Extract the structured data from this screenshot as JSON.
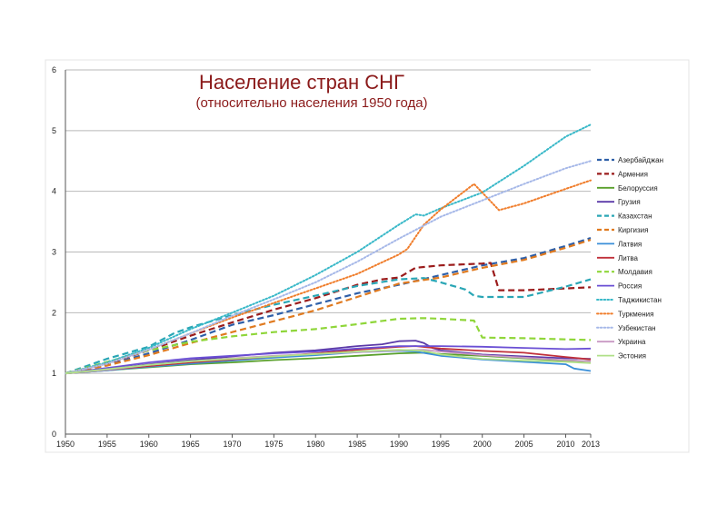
{
  "chart_data": {
    "type": "line",
    "title": "Население стран СНГ",
    "subtitle": "(относительно населения 1950 года)",
    "xlabel": "",
    "ylabel": "",
    "xlim": [
      1950,
      2013
    ],
    "ylim": [
      0,
      6
    ],
    "grid": true,
    "legend_position": "right",
    "x_ticks": [
      1950,
      1955,
      1960,
      1965,
      1970,
      1975,
      1980,
      1985,
      1990,
      1995,
      2000,
      2005,
      2010,
      2013
    ],
    "y_ticks": [
      0,
      1,
      2,
      3,
      4,
      5,
      6
    ],
    "series": [
      {
        "name": "Азербайджан",
        "color": "#2e5fa8",
        "dash": "dashed",
        "points": [
          [
            1950,
            1
          ],
          [
            1955,
            1.14
          ],
          [
            1960,
            1.33
          ],
          [
            1965,
            1.55
          ],
          [
            1970,
            1.8
          ],
          [
            1975,
            1.96
          ],
          [
            1980,
            2.14
          ],
          [
            1985,
            2.32
          ],
          [
            1990,
            2.46
          ],
          [
            1995,
            2.62
          ],
          [
            2000,
            2.78
          ],
          [
            2005,
            2.9
          ],
          [
            2010,
            3.1
          ],
          [
            2013,
            3.23
          ]
        ]
      },
      {
        "name": "Армения",
        "color": "#9b1c1c",
        "dash": "dashed",
        "points": [
          [
            1950,
            1
          ],
          [
            1955,
            1.16
          ],
          [
            1960,
            1.38
          ],
          [
            1965,
            1.62
          ],
          [
            1970,
            1.84
          ],
          [
            1975,
            2.05
          ],
          [
            1980,
            2.24
          ],
          [
            1985,
            2.46
          ],
          [
            1988,
            2.55
          ],
          [
            1990,
            2.58
          ],
          [
            1992,
            2.74
          ],
          [
            1995,
            2.78
          ],
          [
            2000,
            2.81
          ],
          [
            2001,
            2.82
          ],
          [
            2002,
            2.37
          ],
          [
            2005,
            2.37
          ],
          [
            2010,
            2.4
          ],
          [
            2013,
            2.42
          ]
        ]
      },
      {
        "name": "Белоруссия",
        "color": "#5aa02c",
        "dash": "solid",
        "points": [
          [
            1950,
            1
          ],
          [
            1955,
            1.05
          ],
          [
            1960,
            1.1
          ],
          [
            1965,
            1.15
          ],
          [
            1970,
            1.18
          ],
          [
            1975,
            1.22
          ],
          [
            1980,
            1.25
          ],
          [
            1985,
            1.29
          ],
          [
            1990,
            1.33
          ],
          [
            1993,
            1.34
          ],
          [
            1995,
            1.32
          ],
          [
            2000,
            1.29
          ],
          [
            2005,
            1.25
          ],
          [
            2010,
            1.21
          ],
          [
            2013,
            1.2
          ]
        ]
      },
      {
        "name": "Грузия",
        "color": "#5b3aa8",
        "dash": "solid",
        "points": [
          [
            1950,
            1
          ],
          [
            1955,
            1.07
          ],
          [
            1960,
            1.15
          ],
          [
            1965,
            1.22
          ],
          [
            1970,
            1.28
          ],
          [
            1975,
            1.34
          ],
          [
            1980,
            1.38
          ],
          [
            1985,
            1.45
          ],
          [
            1988,
            1.48
          ],
          [
            1990,
            1.53
          ],
          [
            1992,
            1.54
          ],
          [
            1993,
            1.5
          ],
          [
            1994,
            1.42
          ],
          [
            1995,
            1.38
          ],
          [
            2000,
            1.31
          ],
          [
            2005,
            1.28
          ],
          [
            2010,
            1.25
          ],
          [
            2013,
            1.24
          ]
        ]
      },
      {
        "name": "Казахстан",
        "color": "#2aa6b5",
        "dash": "dashed",
        "points": [
          [
            1950,
            1
          ],
          [
            1955,
            1.24
          ],
          [
            1960,
            1.44
          ],
          [
            1963,
            1.66
          ],
          [
            1965,
            1.76
          ],
          [
            1970,
            1.96
          ],
          [
            1975,
            2.13
          ],
          [
            1980,
            2.28
          ],
          [
            1985,
            2.44
          ],
          [
            1990,
            2.55
          ],
          [
            1993,
            2.57
          ],
          [
            1995,
            2.5
          ],
          [
            1998,
            2.38
          ],
          [
            1999,
            2.28
          ],
          [
            2000,
            2.26
          ],
          [
            2005,
            2.26
          ],
          [
            2010,
            2.43
          ],
          [
            2013,
            2.55
          ]
        ]
      },
      {
        "name": "Киргизия",
        "color": "#e07a1f",
        "dash": "dashed",
        "points": [
          [
            1950,
            1
          ],
          [
            1955,
            1.13
          ],
          [
            1960,
            1.3
          ],
          [
            1965,
            1.5
          ],
          [
            1970,
            1.68
          ],
          [
            1975,
            1.86
          ],
          [
            1980,
            2.04
          ],
          [
            1985,
            2.26
          ],
          [
            1990,
            2.48
          ],
          [
            1995,
            2.58
          ],
          [
            2000,
            2.74
          ],
          [
            2005,
            2.87
          ],
          [
            2010,
            3.07
          ],
          [
            2013,
            3.2
          ]
        ]
      },
      {
        "name": "Латвия",
        "color": "#3a8fd8",
        "dash": "solid",
        "points": [
          [
            1950,
            1
          ],
          [
            1955,
            1.05
          ],
          [
            1960,
            1.11
          ],
          [
            1965,
            1.16
          ],
          [
            1970,
            1.21
          ],
          [
            1975,
            1.26
          ],
          [
            1980,
            1.3
          ],
          [
            1985,
            1.35
          ],
          [
            1990,
            1.37
          ],
          [
            1992,
            1.36
          ],
          [
            1995,
            1.29
          ],
          [
            2000,
            1.23
          ],
          [
            2005,
            1.19
          ],
          [
            2010,
            1.15
          ],
          [
            2011,
            1.08
          ],
          [
            2013,
            1.04
          ]
        ]
      },
      {
        "name": "Литва",
        "color": "#c0303a",
        "dash": "solid",
        "points": [
          [
            1950,
            1
          ],
          [
            1955,
            1.06
          ],
          [
            1960,
            1.12
          ],
          [
            1965,
            1.18
          ],
          [
            1970,
            1.23
          ],
          [
            1975,
            1.28
          ],
          [
            1980,
            1.33
          ],
          [
            1985,
            1.39
          ],
          [
            1990,
            1.44
          ],
          [
            1992,
            1.45
          ],
          [
            1995,
            1.41
          ],
          [
            2000,
            1.37
          ],
          [
            2005,
            1.34
          ],
          [
            2010,
            1.27
          ],
          [
            2013,
            1.23
          ]
        ]
      },
      {
        "name": "Молдавия",
        "color": "#8fd63a",
        "dash": "dashed",
        "points": [
          [
            1950,
            1
          ],
          [
            1955,
            1.19
          ],
          [
            1960,
            1.38
          ],
          [
            1965,
            1.52
          ],
          [
            1970,
            1.61
          ],
          [
            1975,
            1.68
          ],
          [
            1980,
            1.73
          ],
          [
            1985,
            1.81
          ],
          [
            1990,
            1.9
          ],
          [
            1993,
            1.91
          ],
          [
            1995,
            1.9
          ],
          [
            1999,
            1.87
          ],
          [
            2000,
            1.59
          ],
          [
            2005,
            1.58
          ],
          [
            2010,
            1.56
          ],
          [
            2013,
            1.55
          ]
        ]
      },
      {
        "name": "Россия",
        "color": "#6a4fd4",
        "dash": "solid",
        "points": [
          [
            1950,
            1
          ],
          [
            1955,
            1.09
          ],
          [
            1960,
            1.18
          ],
          [
            1965,
            1.25
          ],
          [
            1970,
            1.29
          ],
          [
            1975,
            1.33
          ],
          [
            1980,
            1.36
          ],
          [
            1985,
            1.41
          ],
          [
            1990,
            1.45
          ],
          [
            1995,
            1.45
          ],
          [
            2000,
            1.44
          ],
          [
            2005,
            1.42
          ],
          [
            2010,
            1.4
          ],
          [
            2013,
            1.41
          ]
        ]
      },
      {
        "name": "Таджикистан",
        "color": "#38b8c8",
        "dash": "dotted",
        "points": [
          [
            1950,
            1
          ],
          [
            1955,
            1.18
          ],
          [
            1960,
            1.42
          ],
          [
            1965,
            1.73
          ],
          [
            1970,
            2.0
          ],
          [
            1975,
            2.28
          ],
          [
            1980,
            2.62
          ],
          [
            1985,
            3.0
          ],
          [
            1990,
            3.45
          ],
          [
            1992,
            3.62
          ],
          [
            1993,
            3.6
          ],
          [
            1995,
            3.72
          ],
          [
            2000,
            3.98
          ],
          [
            2005,
            4.42
          ],
          [
            2010,
            4.9
          ],
          [
            2013,
            5.1
          ]
        ]
      },
      {
        "name": "Туркмения",
        "color": "#f07d2b",
        "dash": "dotted",
        "points": [
          [
            1950,
            1
          ],
          [
            1955,
            1.16
          ],
          [
            1960,
            1.39
          ],
          [
            1965,
            1.66
          ],
          [
            1970,
            1.92
          ],
          [
            1975,
            2.16
          ],
          [
            1980,
            2.4
          ],
          [
            1985,
            2.64
          ],
          [
            1990,
            2.96
          ],
          [
            1991,
            3.05
          ],
          [
            1993,
            3.45
          ],
          [
            1995,
            3.7
          ],
          [
            1999,
            4.12
          ],
          [
            2000,
            3.98
          ],
          [
            2002,
            3.69
          ],
          [
            2005,
            3.8
          ],
          [
            2010,
            4.04
          ],
          [
            2013,
            4.18
          ]
        ]
      },
      {
        "name": "Узбекистан",
        "color": "#a6b8e8",
        "dash": "dotted",
        "points": [
          [
            1950,
            1
          ],
          [
            1955,
            1.16
          ],
          [
            1960,
            1.39
          ],
          [
            1965,
            1.66
          ],
          [
            1970,
            1.95
          ],
          [
            1975,
            2.22
          ],
          [
            1980,
            2.5
          ],
          [
            1985,
            2.84
          ],
          [
            1990,
            3.22
          ],
          [
            1995,
            3.58
          ],
          [
            2000,
            3.85
          ],
          [
            2005,
            4.12
          ],
          [
            2010,
            4.38
          ],
          [
            2013,
            4.5
          ]
        ]
      },
      {
        "name": "Украина",
        "color": "#c898c4",
        "dash": "solid",
        "points": [
          [
            1950,
            1
          ],
          [
            1955,
            1.06
          ],
          [
            1960,
            1.14
          ],
          [
            1965,
            1.2
          ],
          [
            1970,
            1.25
          ],
          [
            1975,
            1.29
          ],
          [
            1980,
            1.32
          ],
          [
            1985,
            1.35
          ],
          [
            1990,
            1.38
          ],
          [
            1993,
            1.39
          ],
          [
            1995,
            1.36
          ],
          [
            2000,
            1.3
          ],
          [
            2005,
            1.26
          ],
          [
            2010,
            1.22
          ],
          [
            2013,
            1.2
          ]
        ]
      },
      {
        "name": "Эстония",
        "color": "#b0e088",
        "dash": "solid",
        "points": [
          [
            1950,
            1
          ],
          [
            1955,
            1.07
          ],
          [
            1960,
            1.14
          ],
          [
            1965,
            1.2
          ],
          [
            1970,
            1.24
          ],
          [
            1975,
            1.28
          ],
          [
            1980,
            1.32
          ],
          [
            1985,
            1.36
          ],
          [
            1990,
            1.39
          ],
          [
            1993,
            1.37
          ],
          [
            1995,
            1.31
          ],
          [
            2000,
            1.24
          ],
          [
            2005,
            1.21
          ],
          [
            2010,
            1.19
          ],
          [
            2013,
            1.17
          ]
        ]
      }
    ]
  }
}
